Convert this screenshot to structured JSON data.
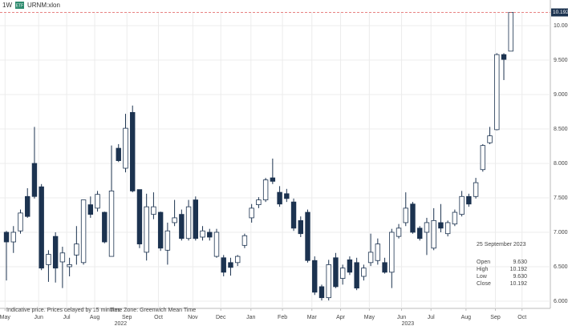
{
  "header": {
    "interval": "1W",
    "badge": "ETF",
    "symbol": "URNM:xlon"
  },
  "chart_data": {
    "type": "candlestick",
    "up_color": "#ffffff",
    "down_color": "#1c3350",
    "edge_color": "#1c3350",
    "grid": true,
    "open": [
      7.0,
      6.86,
      7.02,
      7.52,
      8.0,
      7.66,
      6.53,
      6.94,
      6.57,
      6.5,
      6.67,
      6.56,
      7.4,
      7.35,
      7.29,
      6.65,
      8.22,
      7.93,
      8.74,
      7.62,
      6.71,
      7.26,
      7.29,
      6.74,
      7.14,
      7.26,
      6.91,
      7.47,
      6.93,
      7.0,
      6.65,
      6.63,
      6.56,
      6.56,
      6.81,
      7.21,
      7.4,
      7.47,
      7.79,
      7.58,
      7.56,
      7.44,
      7.17,
      7.29,
      6.59,
      6.21,
      6.05,
      6.63,
      6.33,
      6.6,
      6.56,
      6.36,
      6.56,
      6.59,
      6.56,
      6.42,
      6.94,
      7.14,
      7.41,
      7.06,
      7.0,
      6.77,
      7.14,
      6.98,
      7.12,
      7.26,
      7.52,
      7.52,
      7.91,
      8.3,
      8.49,
      9.58,
      9.63
    ],
    "high": [
      7.02,
      7.09,
      7.33,
      7.64,
      8.53,
      7.7,
      6.74,
      7.0,
      6.79,
      6.63,
      7.09,
      7.47,
      7.52,
      7.6,
      7.3,
      8.26,
      8.28,
      8.72,
      8.84,
      7.62,
      7.56,
      7.58,
      7.3,
      7.14,
      7.47,
      7.33,
      7.47,
      7.52,
      7.09,
      7.05,
      7.05,
      6.67,
      6.63,
      6.67,
      6.98,
      7.41,
      7.51,
      7.79,
      8.07,
      7.67,
      7.63,
      7.49,
      7.23,
      7.33,
      6.65,
      6.24,
      6.6,
      6.7,
      6.53,
      6.65,
      6.63,
      6.53,
      6.98,
      6.91,
      6.63,
      7.05,
      7.12,
      7.58,
      7.44,
      7.09,
      7.21,
      7.35,
      7.41,
      7.17,
      7.33,
      7.6,
      7.56,
      7.79,
      8.28,
      8.53,
      9.6,
      9.6,
      10.192
    ],
    "low": [
      6.3,
      6.7,
      6.98,
      7.21,
      7.49,
      6.45,
      6.28,
      6.27,
      6.19,
      6.36,
      6.53,
      6.53,
      7.21,
      7.3,
      6.84,
      6.65,
      8.02,
      7.87,
      7.58,
      6.77,
      6.59,
      7.19,
      6.73,
      6.53,
      7.09,
      6.88,
      6.88,
      6.88,
      6.88,
      6.88,
      6.63,
      6.36,
      6.37,
      6.51,
      6.77,
      7.14,
      7.35,
      7.44,
      7.7,
      7.37,
      7.44,
      7.02,
      6.93,
      6.56,
      6.09,
      6.01,
      6.01,
      6.19,
      6.24,
      6.38,
      6.16,
      6.3,
      6.51,
      6.53,
      6.4,
      6.19,
      6.91,
      7.09,
      6.98,
      6.88,
      6.67,
      6.74,
      7.0,
      6.94,
      7.09,
      7.23,
      7.37,
      7.49,
      7.88,
      8.28,
      8.48,
      9.21,
      9.63
    ],
    "close": [
      6.86,
      7.0,
      7.28,
      7.23,
      7.52,
      6.48,
      6.68,
      6.48,
      6.7,
      6.53,
      6.83,
      7.47,
      7.26,
      7.55,
      6.86,
      7.6,
      8.04,
      8.51,
      7.6,
      6.83,
      7.37,
      7.37,
      6.77,
      7.02,
      7.21,
      6.91,
      7.37,
      6.91,
      7.02,
      6.93,
      7.0,
      6.42,
      6.49,
      6.65,
      6.95,
      7.35,
      7.47,
      7.76,
      7.74,
      7.41,
      7.49,
      7.06,
      6.98,
      6.59,
      6.13,
      6.05,
      6.53,
      6.21,
      6.48,
      6.42,
      6.19,
      6.48,
      6.71,
      6.83,
      6.42,
      7.0,
      7.06,
      7.35,
      7.0,
      6.91,
      7.14,
      7.17,
      7.06,
      7.14,
      7.29,
      7.52,
      7.41,
      7.72,
      8.26,
      8.4,
      9.58,
      9.51,
      10.192
    ],
    "xlim": [
      -0.92,
      77.64
    ],
    "xticks": [
      {
        "value": -0.2,
        "label": "May"
      },
      {
        "value": 4.6,
        "label": "Jun"
      },
      {
        "value": 8.6,
        "label": "Jul"
      },
      {
        "value": 12.6,
        "label": "Aug"
      },
      {
        "value": 17.2,
        "label": "Sep"
      },
      {
        "value": 21.7,
        "label": "Oct"
      },
      {
        "value": 26.6,
        "label": "Nov"
      },
      {
        "value": 30.6,
        "label": "Dec"
      },
      {
        "value": 34.9,
        "label": "Jan"
      },
      {
        "value": 39.4,
        "label": "Feb"
      },
      {
        "value": 43.6,
        "label": "Mar"
      },
      {
        "value": 47.7,
        "label": "Apr"
      },
      {
        "value": 51.8,
        "label": "May"
      },
      {
        "value": 56.4,
        "label": "Jun"
      },
      {
        "value": 60.6,
        "label": "Jul"
      },
      {
        "value": 65.6,
        "label": "Aug"
      },
      {
        "value": 69.8,
        "label": "Sep"
      },
      {
        "value": 73.6,
        "label": "Oct"
      }
    ],
    "year_ticks": [
      {
        "value": 16.3,
        "label": "2022"
      },
      {
        "value": 57.3,
        "label": "2023"
      }
    ],
    "ylim": [
      5.895,
      10.198
    ],
    "yticks": [
      {
        "value": 6,
        "label": "6.000"
      },
      {
        "value": 6.5,
        "label": "6.500"
      },
      {
        "value": 7,
        "label": "7.000"
      },
      {
        "value": 7.5,
        "label": "7.500"
      },
      {
        "value": 8,
        "label": "8.000"
      },
      {
        "value": 8.5,
        "label": "8.500"
      },
      {
        "value": 9,
        "label": "9.000"
      },
      {
        "value": 9.5,
        "label": "9.500"
      },
      {
        "value": 10,
        "label": "10.000"
      }
    ],
    "last_price": {
      "value": 10.192,
      "label": "10.192"
    },
    "line_color": "#e05a5a"
  },
  "tooltip": {
    "date": "25 September 2023",
    "rows": [
      {
        "label": "Open",
        "value": "9.630"
      },
      {
        "label": "High",
        "value": "10.192"
      },
      {
        "label": "Low",
        "value": "9.630"
      },
      {
        "label": "Close",
        "value": "10.192"
      }
    ]
  },
  "footer": {
    "note": "Indicative price. Prices delayed by 15 minutes",
    "timezone": "Time Zone: Greenwich Mean Time"
  }
}
